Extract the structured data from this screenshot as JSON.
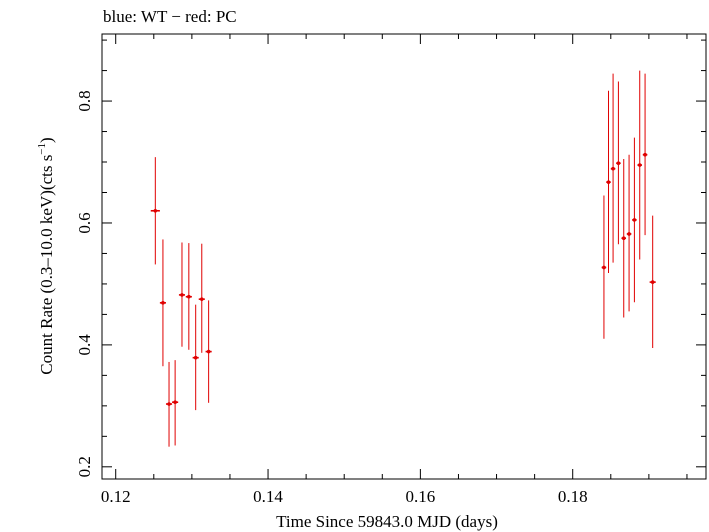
{
  "chart_data": {
    "type": "scatter",
    "title": "blue: WT − red: PC",
    "xlabel": "Time Since 59843.0 MJD (days)",
    "ylabel_main": "Count Rate (0.3–10.0 keV)(cts s",
    "ylabel_sup": "−1",
    "ylabel_end": ")",
    "xlim": [
      0.1182,
      0.1975
    ],
    "ylim": [
      0.18,
      0.91
    ],
    "xticks": [
      0.12,
      0.14,
      0.16,
      0.18
    ],
    "xtick_labels": [
      "0.12",
      "0.14",
      "0.16",
      "0.18"
    ],
    "yticks": [
      0.2,
      0.4,
      0.6,
      0.8
    ],
    "ytick_labels": [
      "0.2",
      "0.4",
      "0.6",
      "0.8"
    ],
    "grid": false,
    "series": [
      {
        "color": "#e00000",
        "points": [
          {
            "x": 0.1252,
            "y": 0.62,
            "xerr": 0.0006,
            "ylo": 0.532,
            "yhi": 0.708
          },
          {
            "x": 0.1262,
            "y": 0.469,
            "xerr": 0.0004,
            "ylo": 0.365,
            "yhi": 0.573
          },
          {
            "x": 0.127,
            "y": 0.303,
            "xerr": 0.0004,
            "ylo": 0.233,
            "yhi": 0.372
          },
          {
            "x": 0.1278,
            "y": 0.306,
            "xerr": 0.0004,
            "ylo": 0.235,
            "yhi": 0.375
          },
          {
            "x": 0.1287,
            "y": 0.482,
            "xerr": 0.0004,
            "ylo": 0.397,
            "yhi": 0.568
          },
          {
            "x": 0.1296,
            "y": 0.479,
            "xerr": 0.0004,
            "ylo": 0.392,
            "yhi": 0.567
          },
          {
            "x": 0.1305,
            "y": 0.379,
            "xerr": 0.0004,
            "ylo": 0.293,
            "yhi": 0.466
          },
          {
            "x": 0.1313,
            "y": 0.475,
            "xerr": 0.0004,
            "ylo": 0.387,
            "yhi": 0.566
          },
          {
            "x": 0.1322,
            "y": 0.389,
            "xerr": 0.0004,
            "ylo": 0.305,
            "yhi": 0.473
          },
          {
            "x": 0.1841,
            "y": 0.527,
            "xerr": 0.0003,
            "ylo": 0.41,
            "yhi": 0.645
          },
          {
            "x": 0.1847,
            "y": 0.667,
            "xerr": 0.0003,
            "ylo": 0.518,
            "yhi": 0.817
          },
          {
            "x": 0.1853,
            "y": 0.689,
            "xerr": 0.0003,
            "ylo": 0.535,
            "yhi": 0.845
          },
          {
            "x": 0.186,
            "y": 0.698,
            "xerr": 0.0003,
            "ylo": 0.565,
            "yhi": 0.832
          },
          {
            "x": 0.1867,
            "y": 0.575,
            "xerr": 0.0003,
            "ylo": 0.445,
            "yhi": 0.705
          },
          {
            "x": 0.1874,
            "y": 0.582,
            "xerr": 0.0003,
            "ylo": 0.455,
            "yhi": 0.712
          },
          {
            "x": 0.1881,
            "y": 0.605,
            "xerr": 0.0003,
            "ylo": 0.47,
            "yhi": 0.74
          },
          {
            "x": 0.1888,
            "y": 0.695,
            "xerr": 0.0003,
            "ylo": 0.54,
            "yhi": 0.85
          },
          {
            "x": 0.1895,
            "y": 0.712,
            "xerr": 0.0003,
            "ylo": 0.58,
            "yhi": 0.845
          },
          {
            "x": 0.1905,
            "y": 0.503,
            "xerr": 0.0004,
            "ylo": 0.395,
            "yhi": 0.612
          }
        ]
      }
    ]
  }
}
